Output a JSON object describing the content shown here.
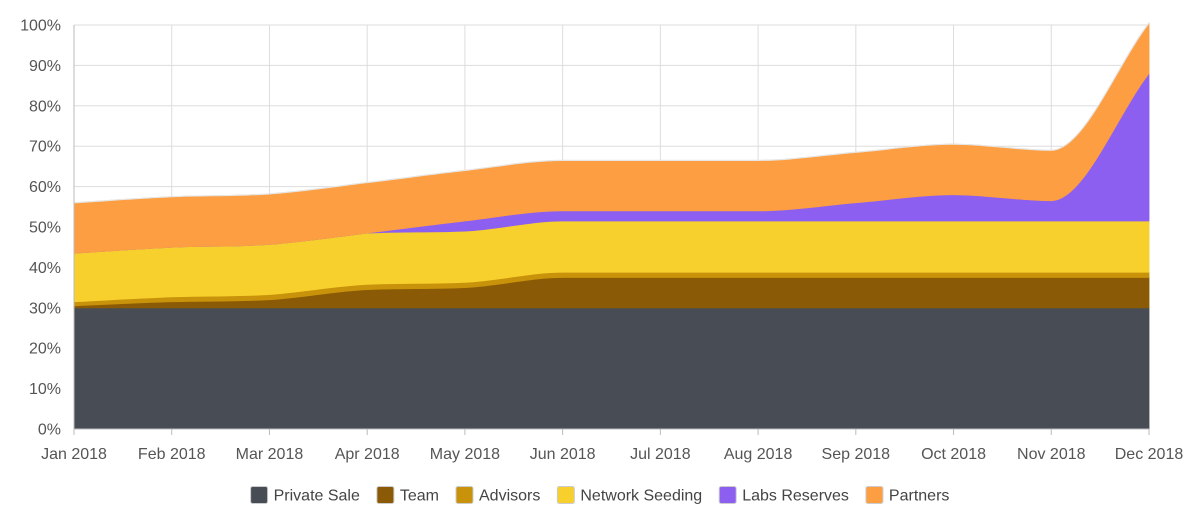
{
  "chart_data": {
    "type": "area",
    "stacked": true,
    "title": "",
    "xlabel": "",
    "ylabel": "",
    "ylim": [
      0,
      100
    ],
    "y_tick_labels": [
      "0%",
      "10%",
      "20%",
      "30%",
      "40%",
      "50%",
      "60%",
      "70%",
      "80%",
      "90%",
      "100%"
    ],
    "categories": [
      "Jan 2018",
      "Feb 2018",
      "Mar 2018",
      "Apr 2018",
      "May 2018",
      "Jun 2018",
      "Jul 2018",
      "Aug 2018",
      "Sep 2018",
      "Oct 2018",
      "Nov 2018",
      "Dec 2018"
    ],
    "legend_position": "bottom",
    "series": [
      {
        "name": "Private Sale",
        "color": "#474c55",
        "values": [
          30,
          30,
          30,
          30,
          30,
          30,
          30,
          30,
          30,
          30,
          30,
          30
        ]
      },
      {
        "name": "Team",
        "color": "#8a5a06",
        "values": [
          0.5,
          1.5,
          2,
          4.5,
          5,
          7.5,
          7.5,
          7.5,
          7.5,
          7.5,
          7.5,
          7.5
        ]
      },
      {
        "name": "Advisors",
        "color": "#c8920a",
        "values": [
          1,
          1.2,
          1.3,
          1.3,
          1.3,
          1.3,
          1.3,
          1.3,
          1.3,
          1.3,
          1.3,
          1.3
        ]
      },
      {
        "name": "Network Seeding",
        "color": "#f7d02e",
        "values": [
          12,
          12.3,
          12.4,
          12.7,
          12.7,
          12.7,
          12.7,
          12.7,
          12.7,
          12.7,
          12.7,
          12.7
        ]
      },
      {
        "name": "Labs Reserves",
        "color": "#8c5ff0",
        "values": [
          0,
          0,
          0,
          0,
          2.5,
          2.5,
          2.5,
          2.5,
          4.5,
          6.5,
          5,
          36.5
        ]
      },
      {
        "name": "Partners",
        "color": "#fc9e41",
        "values": [
          12.5,
          12.5,
          12.5,
          12.5,
          12.5,
          12.5,
          12.5,
          12.5,
          12.5,
          12.5,
          12.5,
          12.5
        ]
      }
    ]
  }
}
